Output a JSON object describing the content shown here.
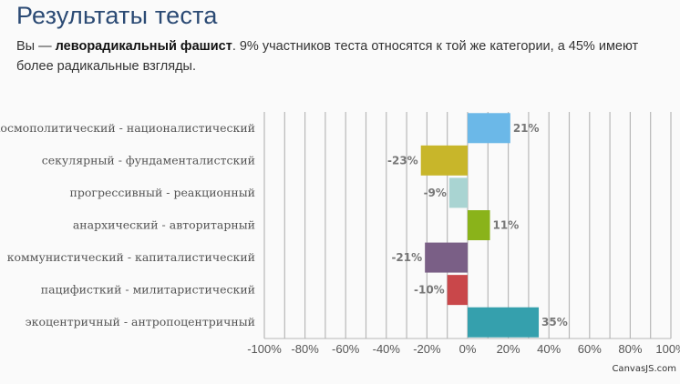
{
  "header": {
    "title": "Результаты теста",
    "summary_prefix": "Вы — ",
    "summary_bold": "леворадикальный фашист",
    "summary_rest": ". 9% участников теста относятся к той же категории, а 45% имеют более радикальные взгляды."
  },
  "chart_data": {
    "type": "bar",
    "orientation": "horizontal",
    "categories": [
      "космополитический - националистический",
      "секулярный - фундаменталистский",
      "прогрессивный - реакционный",
      "анархический - авторитарный",
      "коммунистический - капиталистический",
      "пацифисткий - милитаристический",
      "экоцентричный - антропоцентричный"
    ],
    "values": [
      21,
      -23,
      -9,
      11,
      -21,
      -10,
      35
    ],
    "value_labels": [
      "21%",
      "-23%",
      "-9%",
      "11%",
      "-21%",
      "-10%",
      "35%"
    ],
    "colors": [
      "#6bb8e8",
      "#c8b62a",
      "#a9d4d2",
      "#8ab31a",
      "#7a5f86",
      "#c9474a",
      "#35a0ad"
    ],
    "xlim": [
      -100,
      100
    ],
    "x_ticks": [
      -100,
      -80,
      -60,
      -40,
      -20,
      0,
      20,
      40,
      60,
      80,
      100
    ],
    "x_tick_labels": [
      "-100%",
      "-80%",
      "-60%",
      "-40%",
      "-20%",
      "0%",
      "20%",
      "40%",
      "60%",
      "80%",
      "100%"
    ],
    "grid": true
  },
  "credit": "CanvasJS.com"
}
